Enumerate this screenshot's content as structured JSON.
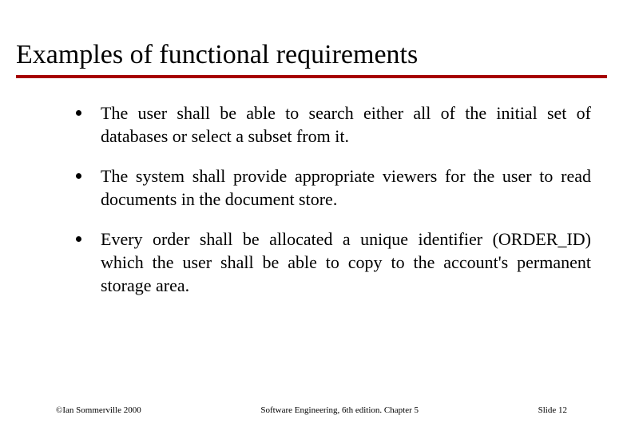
{
  "title": "Examples of functional requirements",
  "title_fontsize": 34,
  "title_color": "#000000",
  "underline_color": "#a60000",
  "underline_height": 4,
  "background_color": "#ffffff",
  "bullet_color": "#000000",
  "bullet_size": 7,
  "body_fontsize": 22,
  "body_color": "#000000",
  "body_font_family": "Times New Roman",
  "bullets": [
    "The user shall be able to search either all of the initial set of databases or select a subset from it.",
    "The system shall provide appropriate viewers for the user to read documents in the document store.",
    "Every order shall be allocated a unique identifier (ORDER_ID) which the user shall be able to copy to the account's permanent storage area."
  ],
  "footer": {
    "left": "©Ian Sommerville 2000",
    "center": "Software Engineering, 6th edition. Chapter 5",
    "right": "Slide  12",
    "fontsize": 11,
    "color": "#000000"
  },
  "slide_width": 780,
  "slide_height": 540
}
